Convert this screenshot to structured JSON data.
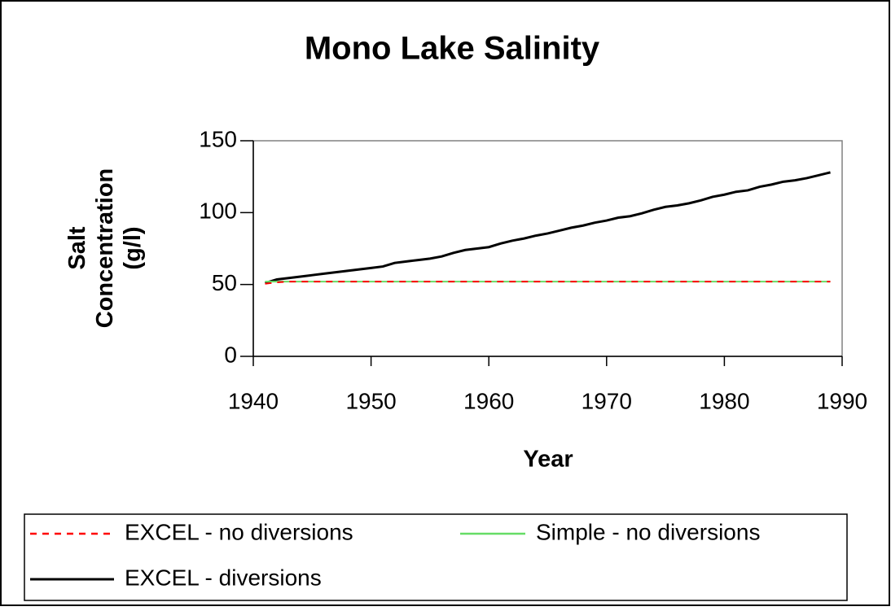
{
  "chart_data": {
    "type": "line",
    "title": "Mono Lake Salinity",
    "xlabel": "Year",
    "ylabel": "Salt Concentration (g/l)",
    "x": [
      1941,
      1942,
      1943,
      1944,
      1945,
      1946,
      1947,
      1948,
      1949,
      1950,
      1951,
      1952,
      1953,
      1954,
      1955,
      1956,
      1957,
      1958,
      1959,
      1960,
      1961,
      1962,
      1963,
      1964,
      1965,
      1966,
      1967,
      1968,
      1969,
      1970,
      1971,
      1972,
      1973,
      1974,
      1975,
      1976,
      1977,
      1978,
      1979,
      1980,
      1981,
      1982,
      1983,
      1984,
      1985,
      1986,
      1987,
      1988,
      1989
    ],
    "series": [
      {
        "name": "EXCEL - no diversions",
        "color": "#ff0000",
        "dash": true,
        "values": [
          50.5,
          51.5,
          52,
          52,
          52,
          52,
          52,
          52,
          52,
          52,
          52,
          52,
          52,
          52,
          52,
          52,
          52,
          52,
          52,
          52,
          52,
          52,
          52,
          52,
          52,
          52,
          52,
          52,
          52,
          52,
          52,
          52,
          52,
          52,
          52,
          52,
          52,
          52,
          52,
          52,
          52,
          52,
          52,
          52,
          52,
          52,
          52,
          52,
          52
        ]
      },
      {
        "name": "Simple - no diversions",
        "color": "#66dd66",
        "dash": false,
        "values": [
          52,
          52,
          52,
          52,
          52,
          52,
          52,
          52,
          52,
          52,
          52,
          52,
          52,
          52,
          52,
          52,
          52,
          52,
          52,
          52,
          52,
          52,
          52,
          52,
          52,
          52,
          52,
          52,
          52,
          52,
          52,
          52,
          52,
          52,
          52,
          52,
          52,
          52,
          52,
          52,
          52,
          52,
          52,
          52,
          52,
          52,
          52,
          52,
          52
        ]
      },
      {
        "name": "EXCEL - diversions",
        "color": "#000000",
        "dash": false,
        "values": [
          51,
          53.5,
          54.5,
          55.5,
          56.5,
          57.5,
          58.5,
          59.5,
          60.5,
          61.5,
          62.5,
          65,
          66,
          67,
          68,
          69.5,
          72,
          74,
          75,
          76,
          78.5,
          80.5,
          82,
          84,
          85.5,
          87.5,
          89.5,
          91,
          93,
          94.5,
          96.5,
          97.5,
          99.5,
          102,
          104,
          105,
          106.5,
          108.5,
          111,
          112.5,
          114.5,
          115.5,
          118,
          119.5,
          121.5,
          122.5,
          124,
          126,
          128
        ]
      }
    ],
    "xlim": [
      1940,
      1990
    ],
    "xticks": [
      1940,
      1950,
      1960,
      1970,
      1980,
      1990
    ],
    "ylim": [
      0,
      150
    ],
    "yticks": [
      0,
      50,
      100,
      150
    ],
    "grid": false,
    "legend": "bottom"
  }
}
